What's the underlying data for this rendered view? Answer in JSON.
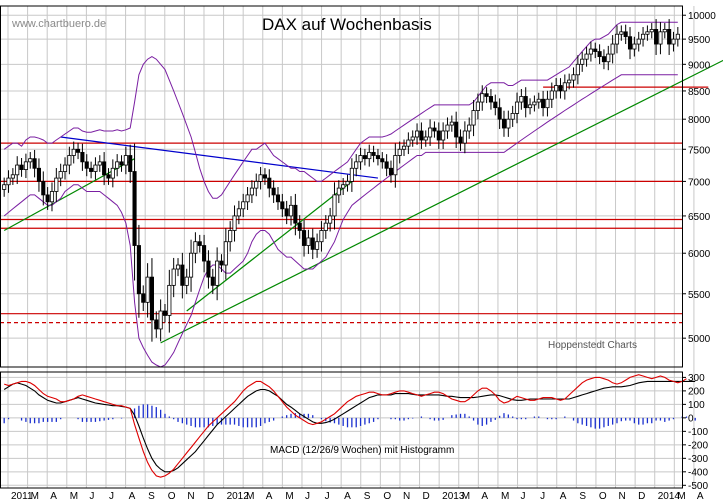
{
  "watermark": "www.chartbuero.de",
  "source_note": "Hoppenstedt Charts",
  "colors": {
    "grid": "#c8c8c8",
    "price": "#000000",
    "bollinger": "#7a1fa2",
    "support": "#cc0000",
    "trend_up": "#008800",
    "trend_down": "#0000cc",
    "macd": "#000000",
    "signal": "#dd0000",
    "histogram": "#1a2fcf"
  },
  "chart_data": [
    {
      "type": "candlestick",
      "title": "DAX auf Wochenbasis",
      "y_ticks": [
        10000,
        9500,
        9000,
        8500,
        8000,
        7500,
        7000,
        6500,
        6000,
        5500,
        5000
      ],
      "y_scale": "log",
      "ylim": [
        4700,
        10200
      ],
      "x_labels": [
        "2011",
        "M",
        "A",
        "M",
        "J",
        "J",
        "A",
        "S",
        "O",
        "N",
        "D",
        "2012",
        "M",
        "A",
        "M",
        "J",
        "J",
        "A",
        "S",
        "O",
        "N",
        "D",
        "2013",
        "M",
        "A",
        "M",
        "J",
        "J",
        "A",
        "S",
        "O",
        "N",
        "D",
        "2014",
        "M",
        "A"
      ],
      "horizontal_lines": [
        {
          "value": 8570,
          "color": "#cc0000",
          "style": "solid",
          "from_week": 124,
          "to_week": 162
        },
        {
          "value": 7600,
          "color": "#cc0000",
          "style": "solid"
        },
        {
          "value": 7000,
          "color": "#cc0000",
          "style": "solid"
        },
        {
          "value": 6450,
          "color": "#cc0000",
          "style": "solid"
        },
        {
          "value": 6330,
          "color": "#cc0000",
          "style": "solid"
        },
        {
          "value": 5270,
          "color": "#cc0000",
          "style": "solid"
        },
        {
          "value": 5170,
          "color": "#cc0000",
          "style": "dashed"
        }
      ],
      "trendlines": [
        {
          "name": "uptrend 2011",
          "color": "#008800",
          "from": [
            0,
            6300
          ],
          "to": [
            30,
            7350
          ]
        },
        {
          "name": "uptrend 2011-2014",
          "color": "#008800",
          "from": [
            36,
            4950
          ],
          "to": [
            166,
            9100
          ]
        },
        {
          "name": "inner uptrend",
          "color": "#008800",
          "from": [
            42,
            5300
          ],
          "to": [
            80,
            7000
          ]
        },
        {
          "name": "downtrend",
          "color": "#0000cc",
          "from": [
            13,
            7700
          ],
          "to": [
            86,
            7050
          ]
        }
      ],
      "weekly_close": [
        6950,
        7050,
        7100,
        7250,
        7180,
        7300,
        7350,
        7200,
        7000,
        6800,
        6700,
        6850,
        7050,
        7150,
        7250,
        7400,
        7500,
        7450,
        7300,
        7200,
        7150,
        7250,
        7300,
        7100,
        7050,
        7200,
        7300,
        7250,
        7400,
        7150,
        6100,
        5500,
        5400,
        5700,
        5200,
        5100,
        5300,
        5250,
        5600,
        5800,
        5850,
        5600,
        5700,
        6000,
        6150,
        6100,
        5900,
        5700,
        5600,
        5900,
        5850,
        6150,
        6300,
        6500,
        6600,
        6700,
        6800,
        6900,
        7000,
        7100,
        7050,
        6900,
        6800,
        6700,
        6600,
        6500,
        6650,
        6400,
        6300,
        6100,
        6200,
        6050,
        6150,
        6300,
        6400,
        6500,
        6800,
        6900,
        6950,
        7000,
        7200,
        7300,
        7400,
        7350,
        7450,
        7400,
        7350,
        7300,
        7200,
        7100,
        7400,
        7500,
        7550,
        7650,
        7700,
        7800,
        7650,
        7700,
        7850,
        7800,
        7650,
        7800,
        7900,
        7950,
        7700,
        7600,
        7800,
        7900,
        8150,
        8300,
        8450,
        8400,
        8300,
        8200,
        8000,
        7850,
        8000,
        8100,
        8300,
        8400,
        8200,
        8250,
        8300,
        8350,
        8200,
        8350,
        8500,
        8600,
        8500,
        8650,
        8700,
        8800,
        9000,
        9100,
        9200,
        9300,
        9250,
        9150,
        9050,
        9200,
        9400,
        9600,
        9650,
        9550,
        9300,
        9400,
        9500,
        9600,
        9650,
        9700,
        9400,
        9650,
        9700,
        9400,
        9500,
        9600
      ],
      "bollinger_upper": [
        7500,
        7550,
        7600,
        7600,
        7550,
        7650,
        7700,
        7700,
        7680,
        7650,
        7600,
        7600,
        7650,
        7700,
        7750,
        7800,
        7850,
        7850,
        7800,
        7780,
        7780,
        7800,
        7820,
        7800,
        7800,
        7800,
        7820,
        7800,
        7820,
        7850,
        8300,
        8800,
        9000,
        9100,
        9150,
        9100,
        9000,
        8900,
        8700,
        8500,
        8300,
        8100,
        7900,
        7700,
        7450,
        7200,
        7000,
        6850,
        6750,
        6750,
        6800,
        6900,
        7000,
        7100,
        7200,
        7300,
        7400,
        7500,
        7500,
        7550,
        7600,
        7500,
        7400,
        7350,
        7300,
        7250,
        7200,
        7200,
        7150,
        7150,
        7100,
        7050,
        7000,
        7000,
        7050,
        7100,
        7150,
        7200,
        7250,
        7300,
        7400,
        7500,
        7600,
        7650,
        7700,
        7700,
        7700,
        7700,
        7720,
        7750,
        7800,
        7850,
        7900,
        7950,
        8000,
        8050,
        8100,
        8150,
        8200,
        8250,
        8250,
        8250,
        8250,
        8250,
        8250,
        8250,
        8250,
        8250,
        8300,
        8400,
        8500,
        8600,
        8650,
        8650,
        8650,
        8650,
        8600,
        8600,
        8650,
        8700,
        8700,
        8700,
        8700,
        8700,
        8700,
        8700,
        8750,
        8800,
        8850,
        8900,
        8950,
        9050,
        9150,
        9250,
        9350,
        9450,
        9500,
        9500,
        9550,
        9600,
        9700,
        9800,
        9850,
        9850,
        9850,
        9850,
        9850,
        9850,
        9850,
        9850,
        9850,
        9850,
        9850,
        9850,
        9850,
        9850
      ],
      "bollinger_lower": [
        6500,
        6550,
        6600,
        6650,
        6700,
        6750,
        6800,
        6800,
        6750,
        6700,
        6650,
        6650,
        6700,
        6750,
        6850,
        6900,
        6950,
        6950,
        6900,
        6850,
        6850,
        6850,
        6850,
        6800,
        6750,
        6700,
        6650,
        6550,
        6400,
        6100,
        5400,
        5000,
        4900,
        4820,
        4750,
        4720,
        4700,
        4720,
        4780,
        4850,
        4950,
        5050,
        5150,
        5250,
        5400,
        5550,
        5700,
        5800,
        5850,
        5850,
        5800,
        5750,
        5750,
        5800,
        5850,
        5900,
        6000,
        6150,
        6250,
        6300,
        6300,
        6250,
        6150,
        6050,
        6000,
        5950,
        5950,
        5900,
        5850,
        5800,
        5800,
        5800,
        5850,
        5900,
        5950,
        6050,
        6150,
        6300,
        6450,
        6550,
        6650,
        6700,
        6750,
        6800,
        6850,
        6900,
        6950,
        7000,
        7050,
        7100,
        7150,
        7200,
        7250,
        7300,
        7350,
        7400,
        7400,
        7450,
        7450,
        7450,
        7450,
        7450,
        7450,
        7450,
        7450,
        7450,
        7450,
        7450,
        7450,
        7450,
        7450,
        7450,
        7450,
        7450,
        7450,
        7450,
        7500,
        7550,
        7600,
        7650,
        7700,
        7750,
        7800,
        7850,
        7900,
        7950,
        8000,
        8050,
        8100,
        8150,
        8200,
        8250,
        8300,
        8350,
        8400,
        8450,
        8500,
        8550,
        8600,
        8650,
        8700,
        8750,
        8800,
        8800,
        8800,
        8800,
        8800,
        8800,
        8800,
        8800,
        8800,
        8800,
        8800,
        8800,
        8800,
        8800
      ]
    },
    {
      "type": "line",
      "title": "MACD (12/26/9 Wochen) mit Histogramm",
      "y_ticks": [
        300,
        200,
        100,
        0,
        -100,
        -200,
        -300,
        -400,
        -500
      ],
      "ylim": [
        -520,
        340
      ],
      "series": [
        {
          "color": "#000000",
          "values": [
            210,
            230,
            250,
            260,
            250,
            240,
            220,
            200,
            170,
            150,
            130,
            120,
            110,
            110,
            120,
            130,
            140,
            150,
            140,
            130,
            120,
            110,
            105,
            100,
            95,
            90,
            90,
            85,
            80,
            70,
            20,
            -60,
            -150,
            -230,
            -300,
            -350,
            -380,
            -400,
            -400,
            -390,
            -370,
            -340,
            -310,
            -280,
            -250,
            -210,
            -170,
            -130,
            -90,
            -50,
            -20,
            10,
            40,
            70,
            100,
            130,
            160,
            180,
            200,
            210,
            210,
            200,
            180,
            160,
            130,
            100,
            80,
            55,
            30,
            10,
            -10,
            -30,
            -40,
            -40,
            -35,
            -25,
            -10,
            10,
            30,
            50,
            70,
            90,
            110,
            130,
            150,
            160,
            170,
            170,
            170,
            170,
            180,
            180,
            180,
            180,
            175,
            170,
            170,
            170,
            170,
            170,
            170,
            165,
            160,
            160,
            155,
            150,
            150,
            150,
            150,
            155,
            160,
            165,
            170,
            170,
            165,
            155,
            145,
            135,
            130,
            130,
            135,
            140,
            140,
            140,
            140,
            140,
            140,
            140,
            140,
            140,
            140,
            150,
            160,
            170,
            180,
            190,
            200,
            210,
            220,
            225,
            230,
            230,
            230,
            235,
            240,
            250,
            260,
            265,
            270,
            270,
            270,
            270,
            270,
            270,
            270,
            270,
            270,
            270,
            270,
            270
          ]
        },
        {
          "color": "#dd0000",
          "values": [
            250,
            240,
            250,
            260,
            270,
            270,
            260,
            240,
            210,
            180,
            160,
            150,
            140,
            120,
            120,
            130,
            140,
            160,
            170,
            160,
            150,
            140,
            130,
            120,
            110,
            100,
            90,
            90,
            80,
            70,
            -50,
            -150,
            -250,
            -330,
            -390,
            -430,
            -440,
            -430,
            -410,
            -380,
            -340,
            -300,
            -260,
            -220,
            -180,
            -140,
            -100,
            -60,
            -30,
            0,
            30,
            60,
            90,
            120,
            160,
            200,
            230,
            250,
            270,
            270,
            250,
            230,
            200,
            160,
            120,
            80,
            50,
            20,
            0,
            -20,
            -40,
            -50,
            -40,
            -30,
            -10,
            10,
            30,
            60,
            90,
            120,
            140,
            160,
            170,
            180,
            190,
            190,
            180,
            170,
            170,
            180,
            190,
            200,
            200,
            190,
            180,
            170,
            160,
            170,
            180,
            190,
            190,
            180,
            160,
            140,
            130,
            120,
            120,
            140,
            170,
            200,
            220,
            220,
            200,
            170,
            130,
            110,
            120,
            140,
            160,
            150,
            140,
            130,
            130,
            140,
            150,
            150,
            150,
            140,
            130,
            140,
            170,
            200,
            230,
            260,
            280,
            290,
            300,
            300,
            290,
            280,
            260,
            250,
            260,
            280,
            300,
            310,
            320,
            310,
            300,
            290,
            300,
            310,
            300,
            280,
            270,
            260,
            270,
            290
          ]
        },
        {
          "color": "#1a2fcf",
          "type": "bar",
          "values": [
            -40,
            -10,
            0,
            0,
            -20,
            -30,
            -40,
            -40,
            -40,
            -30,
            -30,
            -30,
            -30,
            -10,
            0,
            0,
            0,
            -10,
            -30,
            -30,
            -30,
            -30,
            -25,
            -20,
            -15,
            -10,
            0,
            -5,
            0,
            0,
            70,
            90,
            100,
            100,
            90,
            80,
            60,
            30,
            10,
            -10,
            -30,
            -40,
            -50,
            -60,
            -70,
            -70,
            -70,
            -70,
            -60,
            -50,
            -50,
            -50,
            -50,
            -50,
            -60,
            -70,
            -70,
            -70,
            -70,
            -60,
            -40,
            -30,
            -20,
            0,
            10,
            20,
            30,
            35,
            30,
            30,
            30,
            20,
            0,
            -10,
            -25,
            -35,
            -40,
            -50,
            -60,
            -70,
            -70,
            -70,
            -60,
            -50,
            -40,
            -30,
            -10,
            0,
            0,
            -10,
            -10,
            -20,
            -20,
            -10,
            -5,
            0,
            10,
            0,
            -10,
            -20,
            -20,
            -15,
            0,
            20,
            25,
            30,
            30,
            10,
            -20,
            -50,
            -60,
            -50,
            -30,
            -15,
            15,
            35,
            25,
            10,
            -10,
            -10,
            -10,
            0,
            10,
            10,
            0,
            -10,
            -10,
            -10,
            0,
            10,
            0,
            -20,
            -40,
            -50,
            -60,
            -70,
            -80,
            -80,
            -70,
            -60,
            -50,
            -40,
            -25,
            -20,
            -20,
            -40,
            -50,
            -50,
            -40,
            -40,
            -20,
            -20,
            -30,
            -20,
            -10,
            0,
            10,
            10,
            0,
            -20
          ]
        }
      ]
    }
  ]
}
